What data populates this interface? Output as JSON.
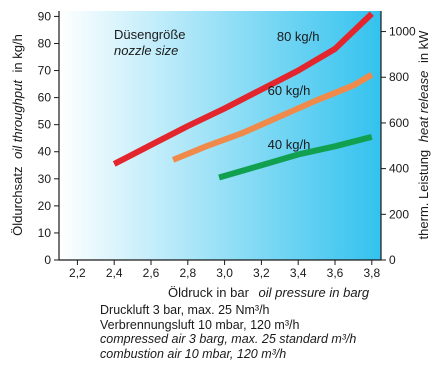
{
  "chart_data": {
    "type": "line",
    "x_axis": {
      "label_de": "Öldruck in bar",
      "label_en": "oil pressure in barg",
      "range": [
        2.1,
        3.85
      ],
      "ticks": [
        "2,2",
        "2,4",
        "2,6",
        "2,8",
        "3,0",
        "3,2",
        "3,4",
        "3,6",
        "3,8"
      ],
      "tick_values": [
        2.2,
        2.4,
        2.6,
        2.8,
        3.0,
        3.2,
        3.4,
        3.6,
        3.8
      ]
    },
    "y_left": {
      "label_de": "Öldurchsatz",
      "label_en": "oil throughput",
      "label_unit": "in kg/h",
      "range": [
        0,
        92
      ],
      "ticks": [
        "0",
        "10",
        "20",
        "30",
        "40",
        "50",
        "60",
        "70",
        "80",
        "90"
      ],
      "tick_values": [
        0,
        10,
        20,
        30,
        40,
        50,
        60,
        70,
        80,
        90
      ]
    },
    "y_right": {
      "label_de": "therm. Leistung",
      "label_en": "heat release",
      "label_unit": "in kW",
      "range": [
        0,
        1090
      ],
      "ticks": [
        "0",
        "200",
        "400",
        "600",
        "800",
        "1000"
      ],
      "tick_values": [
        0,
        200,
        400,
        600,
        800,
        1000
      ]
    },
    "legend": {
      "title_de": "Düsengröße",
      "title_en": "nozzle size"
    },
    "series": [
      {
        "name": "80 kg/h",
        "color": "#e3262e",
        "points": [
          [
            2.4,
            35.5
          ],
          [
            2.6,
            42.5
          ],
          [
            2.8,
            49.5
          ],
          [
            3.0,
            56
          ],
          [
            3.2,
            63
          ],
          [
            3.4,
            70
          ],
          [
            3.6,
            78
          ],
          [
            3.8,
            91
          ]
        ]
      },
      {
        "name": "60 kg/h",
        "color": "#f08a4b",
        "points": [
          [
            2.72,
            37
          ],
          [
            2.9,
            42
          ],
          [
            3.1,
            47
          ],
          [
            3.3,
            53
          ],
          [
            3.5,
            59
          ],
          [
            3.7,
            64.5
          ],
          [
            3.8,
            68.5
          ]
        ]
      },
      {
        "name": "40 kg/h",
        "color": "#10a050",
        "points": [
          [
            2.97,
            30.5
          ],
          [
            3.2,
            35
          ],
          [
            3.4,
            39
          ],
          [
            3.6,
            42
          ],
          [
            3.8,
            45.5
          ]
        ]
      }
    ]
  },
  "notes": {
    "line1": "Druckluft 3 bar, max. 25 Nm³/h",
    "line2": "Verbrennungsluft 10 mbar, 120 m³/h",
    "line3": "compressed air 3 barg, max. 25 standard m³/h",
    "line4": "combustion air 10 mbar, 120 m³/h"
  }
}
